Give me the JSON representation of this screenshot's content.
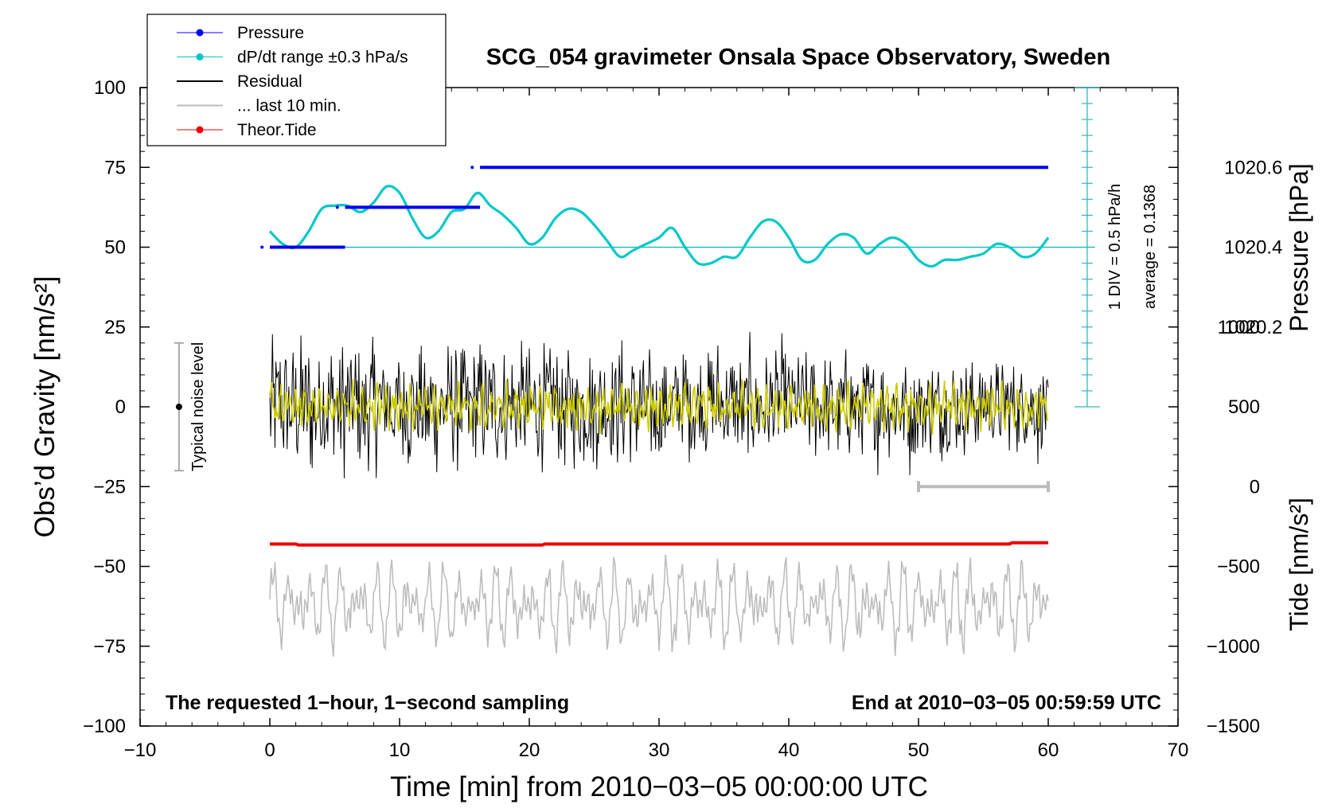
{
  "chart_data": {
    "type": "line",
    "title": "SCG_054 gravimeter Onsala Space Observatory, Sweden",
    "xlabel": "Time [min] from 2010−03−05 00:00:00 UTC",
    "xlim": [
      -10,
      70
    ],
    "x_ticks": [
      -10,
      0,
      10,
      20,
      30,
      40,
      50,
      60,
      70
    ],
    "x_tick_labels": [
      "−10",
      "0",
      "10",
      "20",
      "30",
      "40",
      "50",
      "60",
      "70"
    ],
    "left_axis": {
      "label": "Obs’d Gravity [nm/s²]",
      "ylim": [
        -100,
        100
      ],
      "ticks": [
        -100,
        -75,
        -50,
        -25,
        0,
        25,
        50,
        75,
        100
      ],
      "tick_labels": [
        "−100",
        "−75",
        "−50",
        "−25",
        "0",
        "25",
        "50",
        "75",
        "100"
      ]
    },
    "right_pressure_axis": {
      "label": "Pressure [hPa]",
      "ticks": [
        1020.6,
        1020.4,
        1020.2
      ],
      "tick_labels": [
        "1020.6",
        "1020.4",
        "1020.2"
      ],
      "map": {
        "value_at_gravity_50": 1020.4,
        "hPa_per_25_gravity": 0.2
      }
    },
    "right_tide_axis": {
      "label": "Tide [nm/s²]",
      "ticks": [
        1000,
        500,
        0,
        -500,
        -1000,
        -1500
      ],
      "tick_labels": [
        "1000",
        "500",
        "0",
        "−500",
        "−1000",
        "−1500"
      ],
      "map": {
        "value_at_gravity_minus_100": -1500,
        "nm_per_unit_gravity": 20
      }
    },
    "legend": {
      "placement": "top-left",
      "entries": [
        {
          "label": "Pressure",
          "color": "#0000ee",
          "style": "line-dot"
        },
        {
          "label": "dP/dt range ±0.3 hPa/s",
          "color": "#00c8c8",
          "style": "line-dot"
        },
        {
          "label": "Residual",
          "color": "#000000",
          "style": "line"
        },
        {
          "label": "... last 10 min.",
          "color": "#bbbbbb",
          "style": "line"
        },
        {
          "label": "Theor.Tide",
          "color": "#ee0000",
          "style": "line-dot"
        }
      ]
    },
    "pressure_steps": [
      {
        "x_start": 0,
        "x_end": 5.8,
        "value": 1020.4
      },
      {
        "x_start": 5.8,
        "x_end": 16.2,
        "value": 1020.5
      },
      {
        "x_start": 16.2,
        "x_end": 60,
        "value": 1020.6
      }
    ],
    "dpdt_curve": {
      "x": [
        0,
        1,
        2,
        3,
        4,
        5,
        6,
        7,
        8,
        9,
        10,
        11,
        12,
        13,
        14,
        15,
        16,
        17,
        18,
        19,
        20,
        21,
        22,
        23,
        24,
        25,
        26,
        27,
        28,
        29,
        30,
        31,
        32,
        33,
        34,
        35,
        36,
        37,
        38,
        39,
        40,
        41,
        42,
        43,
        44,
        45,
        46,
        47,
        48,
        49,
        50,
        51,
        52,
        53,
        54,
        55,
        56,
        57,
        58,
        59,
        60
      ],
      "y": [
        55,
        51,
        50,
        55,
        62,
        63,
        63,
        61,
        64,
        69,
        67,
        59,
        53,
        55,
        61,
        62,
        67,
        63,
        60,
        56,
        51,
        53,
        59,
        62,
        61,
        57,
        52,
        47,
        49,
        51,
        53,
        56,
        50,
        45,
        45,
        47,
        47,
        53,
        58,
        58,
        53,
        46,
        46,
        51,
        54,
        53,
        48,
        51,
        53,
        51,
        46,
        44,
        46,
        46,
        47,
        48,
        51,
        50,
        47,
        48,
        53
      ]
    },
    "dpdt_reference_level": 50,
    "theoretical_tide": {
      "x": [
        0,
        2,
        2.2,
        21,
        21.2,
        57,
        57.2,
        60
      ],
      "y": [
        -43,
        -43,
        -43.3,
        -43.3,
        -43,
        -43,
        -42.6,
        -42.6
      ]
    },
    "noise_bar": {
      "x": -7,
      "center": 0,
      "half_range": 20,
      "label": "Typical noise level"
    },
    "last10_marker": {
      "x_start": 50,
      "x_end": 60,
      "y": -25
    },
    "scale_annotation": {
      "div_label": "1 DIV = 0.5 hPa/h",
      "average_label": "average = 0.1368"
    },
    "footer_left": "The requested 1−hour, 1−second sampling",
    "footer_right": "End at 2010−03−05 00:59:59 UTC",
    "residual_description": "black noisy trace, amplitude about ±30 nm/s² over 0–60 min",
    "filtered_residual_description": "yellow smoothed trace, amplitude about ±8 nm/s² over 0–60 min",
    "last10_description": "grey trace of last 10 min, centered near −62, amplitude about ±15"
  }
}
